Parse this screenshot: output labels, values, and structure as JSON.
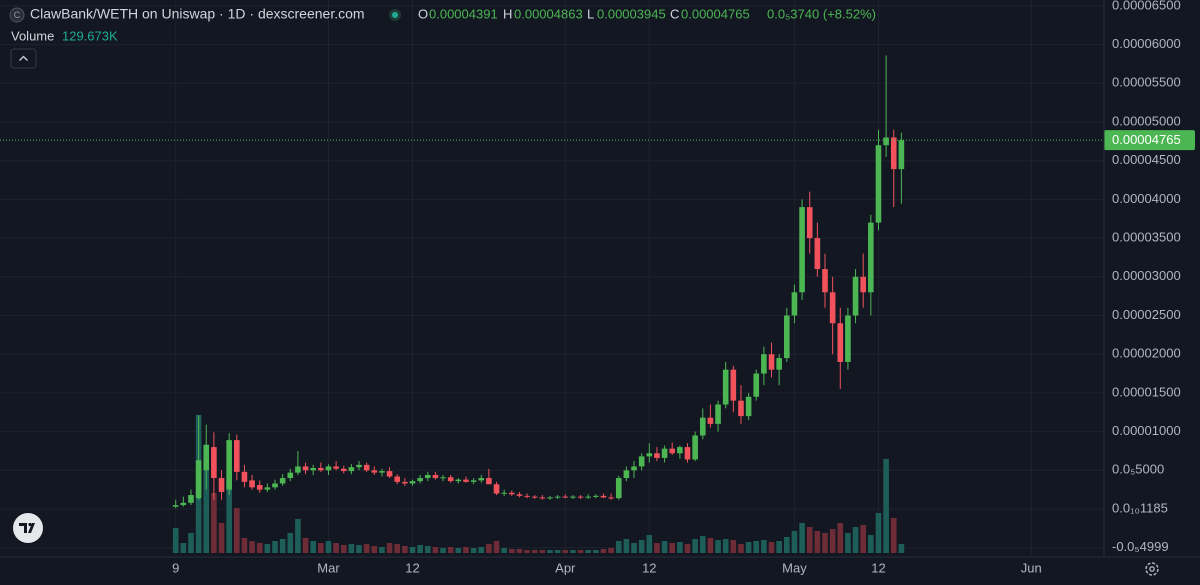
{
  "header": {
    "logo": "C",
    "title": "ClawBank/WETH on Uniswap · 1D · dexscreener.com",
    "o_label": "O",
    "h_label": "H",
    "l_label": "L",
    "c_label": "C",
    "change": "0.0₅3740 (+8.52%)",
    "volume_label": "Volume",
    "volume": "129.673K"
  },
  "chart_data": {
    "type": "candlestick",
    "x": [
      "Feb 9",
      "Feb 10",
      "Feb 11",
      "Feb 12",
      "Feb 13",
      "Feb 14",
      "Feb 15",
      "Feb 16",
      "Feb 17",
      "Feb 18",
      "Feb 19",
      "Feb 20",
      "Feb 21",
      "Feb 22",
      "Feb 23",
      "Feb 24",
      "Feb 25",
      "Feb 26",
      "Feb 27",
      "Feb 28",
      "Mar 1",
      "Mar 2",
      "Mar 3",
      "Mar 4",
      "Mar 5",
      "Mar 6",
      "Mar 7",
      "Mar 8",
      "Mar 9",
      "Mar 10",
      "Mar 11",
      "Mar 12",
      "Mar 13",
      "Mar 14",
      "Mar 15",
      "Mar 16",
      "Mar 17",
      "Mar 18",
      "Mar 19",
      "Mar 20",
      "Mar 21",
      "Mar 22",
      "Mar 23",
      "Mar 24",
      "Mar 25",
      "Mar 26",
      "Mar 27",
      "Mar 28",
      "Mar 29",
      "Mar 30",
      "Mar 31",
      "Apr 1",
      "Apr 2",
      "Apr 3",
      "Apr 4",
      "Apr 5",
      "Apr 6",
      "Apr 7",
      "Apr 8",
      "Apr 9",
      "Apr 10",
      "Apr 11",
      "Apr 12",
      "Apr 13",
      "Apr 14",
      "Apr 15",
      "Apr 16",
      "Apr 17",
      "Apr 18",
      "Apr 19",
      "Apr 20",
      "Apr 21",
      "Apr 22",
      "Apr 23",
      "Apr 24",
      "Apr 25",
      "Apr 26",
      "Apr 27",
      "Apr 28",
      "Apr 29",
      "Apr 30",
      "May 1",
      "May 2",
      "May 3",
      "May 4",
      "May 5",
      "May 6",
      "May 7",
      "May 8",
      "May 9",
      "May 10",
      "May 11",
      "May 12",
      "May 13",
      "May 14",
      "May 15"
    ],
    "open": [
      3e-07,
      5e-07,
      8e-07,
      1.4e-06,
      5e-06,
      8e-06,
      4e-06,
      2.5e-06,
      8.9e-06,
      4.8e-06,
      3.7e-06,
      3.1e-06,
      2.5e-06,
      2.8e-06,
      3.3e-06,
      4e-06,
      4.7e-06,
      5.5e-06,
      5e-06,
      5.3e-06,
      5e-06,
      5.5e-06,
      5.2e-06,
      4.9e-06,
      5.4e-06,
      5.7e-06,
      5e-06,
      4.7e-06,
      4.9e-06,
      4.2e-06,
      3.5e-06,
      3.3e-06,
      3.6e-06,
      4e-06,
      4.4e-06,
      4e-06,
      4.1e-06,
      3.6e-06,
      3.8e-06,
      3.5e-06,
      3.7e-06,
      4e-06,
      3.2e-06,
      2e-06,
      2.1e-06,
      1.9e-06,
      1.7e-06,
      1.6e-06,
      1.5e-06,
      1.4e-06,
      1.5e-06,
      1.6e-06,
      1.5e-06,
      1.6e-06,
      1.5e-06,
      1.6e-06,
      1.7e-06,
      1.5e-06,
      1.4e-06,
      4e-06,
      5e-06,
      5.5e-06,
      6.8e-06,
      7.2e-06,
      6.6e-06,
      7.8e-06,
      7.2e-06,
      8e-06,
      6.4e-06,
      9.5e-06,
      1.18e-05,
      1.1e-05,
      1.35e-05,
      1.8e-05,
      1.4e-05,
      1.2e-05,
      1.45e-05,
      1.75e-05,
      2e-05,
      1.8e-05,
      1.95e-05,
      2.5e-05,
      2.8e-05,
      3.9e-05,
      3.5e-05,
      3.1e-05,
      2.8e-05,
      2.4e-05,
      1.9e-05,
      2.5e-05,
      3e-05,
      2.8e-05,
      3.7e-05,
      4.7e-05,
      4.8e-05,
      4.391e-05
    ],
    "high": [
      1.2e-06,
      1.6e-06,
      2.5e-06,
      1.21e-05,
      1.09e-05,
      9.9e-06,
      5e-06,
      9.8e-06,
      9.6e-06,
      5.7e-06,
      4.4e-06,
      3.7e-06,
      3.3e-06,
      3.8e-06,
      4.5e-06,
      5.2e-06,
      7.5e-06,
      6e-06,
      5.7e-06,
      6e-06,
      5.8e-06,
      6.2e-06,
      5.6e-06,
      5.8e-06,
      6.2e-06,
      6e-06,
      5.5e-06,
      5.2e-06,
      5.4e-06,
      4.5e-06,
      4e-06,
      3.8e-06,
      4.4e-06,
      4.8e-06,
      4.8e-06,
      4.4e-06,
      4.4e-06,
      4e-06,
      4.2e-06,
      4e-06,
      4.4e-06,
      5.2e-06,
      3.5e-06,
      2.5e-06,
      2.4e-06,
      2.2e-06,
      2e-06,
      1.8e-06,
      1.8e-06,
      1.7e-06,
      1.8e-06,
      1.9e-06,
      1.8e-06,
      1.8e-06,
      1.9e-06,
      1.9e-06,
      2e-06,
      2e-06,
      4.3e-06,
      5.5e-06,
      6.2e-06,
      7.2e-06,
      8.5e-06,
      8e-06,
      8.2e-06,
      8.6e-06,
      8.2e-06,
      8.5e-06,
      1e-05,
      1.3e-05,
      1.35e-05,
      1.4e-05,
      1.9e-05,
      1.85e-05,
      1.6e-05,
      1.5e-05,
      1.8e-05,
      2.1e-05,
      2.15e-05,
      2e-05,
      2.6e-05,
      2.9e-05,
      4e-05,
      4.1e-05,
      3.7e-05,
      3.3e-05,
      3e-05,
      2.6e-05,
      2.6e-05,
      3.1e-05,
      3.3e-05,
      3.8e-05,
      4.9e-05,
      5.86e-05,
      4.9e-05,
      4.863e-05
    ],
    "low": [
      1e-07,
      3e-07,
      5e-07,
      1.2e-06,
      2.5e-06,
      1.2e-06,
      1.2e-06,
      1.8e-06,
      3.7e-06,
      2.8e-06,
      2.5e-06,
      2.1e-06,
      2.2e-06,
      2.5e-06,
      3e-06,
      3.6e-06,
      4.4e-06,
      4.5e-06,
      4.4e-06,
      4.8e-06,
      4.4e-06,
      5e-06,
      4.6e-06,
      4.5e-06,
      5e-06,
      4.8e-06,
      4.4e-06,
      4.2e-06,
      4e-06,
      3.2e-06,
      3e-06,
      3e-06,
      3.3e-06,
      3.6e-06,
      3.8e-06,
      3.6e-06,
      3.4e-06,
      3.3e-06,
      3.4e-06,
      3.2e-06,
      3.4e-06,
      3.6e-06,
      1.8e-06,
      1.7e-06,
      1.7e-06,
      1.5e-06,
      1.4e-06,
      1.3e-06,
      1.2e-06,
      1.2e-06,
      1.3e-06,
      1.4e-06,
      1.3e-06,
      1.3e-06,
      1.3e-06,
      1.4e-06,
      1.4e-06,
      1.2e-06,
      1.2e-06,
      3.6e-06,
      4e-06,
      5e-06,
      6e-06,
      6.2e-06,
      6e-06,
      7e-06,
      6.5e-06,
      6e-06,
      6.2e-06,
      9e-06,
      1.05e-05,
      1e-05,
      1.3e-05,
      1.25e-05,
      1.1e-05,
      1.15e-05,
      1.4e-05,
      1.6e-05,
      1.7e-05,
      1.6e-05,
      1.9e-05,
      2.4e-05,
      2.7e-05,
      3.3e-05,
      3e-05,
      2.6e-05,
      2e-05,
      1.55e-05,
      1.8e-05,
      2.4e-05,
      2.6e-05,
      2.5e-05,
      3.6e-05,
      4.55e-05,
      3.9e-05,
      3.945e-05
    ],
    "close": [
      5e-07,
      8e-07,
      1.8e-06,
      6.3e-06,
      8.3e-06,
      4e-06,
      2.2e-06,
      8.9e-06,
      4.8e-06,
      3.5e-06,
      2.8e-06,
      2.5e-06,
      2.8e-06,
      3.3e-06,
      4e-06,
      4.7e-06,
      5.5e-06,
      5e-06,
      5.3e-06,
      5e-06,
      5.5e-06,
      5.2e-06,
      4.9e-06,
      5.4e-06,
      5.7e-06,
      5e-06,
      4.7e-06,
      4.9e-06,
      4.2e-06,
      3.5e-06,
      3.3e-06,
      3.6e-06,
      4e-06,
      4.4e-06,
      4e-06,
      4.1e-06,
      3.6e-06,
      3.8e-06,
      3.5e-06,
      3.7e-06,
      4e-06,
      3.2e-06,
      2e-06,
      2.1e-06,
      1.9e-06,
      1.7e-06,
      1.6e-06,
      1.5e-06,
      1.4e-06,
      1.5e-06,
      1.6e-06,
      1.5e-06,
      1.6e-06,
      1.5e-06,
      1.6e-06,
      1.7e-06,
      1.5e-06,
      1.4e-06,
      4e-06,
      5e-06,
      5.5e-06,
      6.8e-06,
      7.2e-06,
      6.6e-06,
      7.8e-06,
      7.2e-06,
      8e-06,
      6.4e-06,
      9.5e-06,
      1.18e-05,
      1.1e-05,
      1.35e-05,
      1.8e-05,
      1.4e-05,
      1.2e-05,
      1.45e-05,
      1.75e-05,
      2e-05,
      1.8e-05,
      1.95e-05,
      2.5e-05,
      2.8e-05,
      3.9e-05,
      3.5e-05,
      3.1e-05,
      2.8e-05,
      2.4e-05,
      1.9e-05,
      2.5e-05,
      3e-05,
      2.8e-05,
      3.7e-05,
      4.7e-05,
      4.8e-05,
      4.391e-05,
      4.765e-05
    ],
    "volume": [
      360000,
      144000,
      288000,
      1987200,
      1224000,
      864000,
      432000,
      1152000,
      648000,
      216000,
      172800,
      144000,
      129600,
      172800,
      201600,
      288000,
      489600,
      216000,
      172800,
      144000,
      172800,
      144000,
      115200,
      129600,
      115200,
      129600,
      100800,
      86400,
      144000,
      129600,
      100800,
      86400,
      115200,
      100800,
      86400,
      72000,
      86400,
      72000,
      86400,
      72000,
      86400,
      129600,
      172800,
      72000,
      57600,
      57600,
      43200,
      43200,
      43200,
      43200,
      43200,
      43200,
      43200,
      43200,
      43200,
      43200,
      57600,
      72000,
      172800,
      201600,
      144000,
      187200,
      259200,
      144000,
      172800,
      144000,
      158400,
      129600,
      201600,
      244800,
      216000,
      187200,
      201600,
      187200,
      129600,
      158400,
      172800,
      187200,
      158400,
      172800,
      230400,
      316800,
      432000,
      374400,
      316800,
      288000,
      345600,
      432000,
      288000,
      374400,
      403200,
      259200,
      576000,
      1353600,
      504000,
      129673
    ],
    "up_color": "#4cb752",
    "down_color": "#f2525c",
    "up_volume_color": "#1d5e58",
    "down_volume_color": "#6e2c37",
    "xlim": [
      "Jan 17",
      "Jun 10"
    ],
    "xticks": [
      {
        "value": "Feb 9",
        "label": "9"
      },
      {
        "value": "Mar 1",
        "label": "Mar"
      },
      {
        "value": "Mar 12",
        "label": "12"
      },
      {
        "value": "Apr 1",
        "label": "Apr"
      },
      {
        "value": "Apr 12",
        "label": "12"
      },
      {
        "value": "May 1",
        "label": "May"
      },
      {
        "value": "May 12",
        "label": "12"
      },
      {
        "value": "Jun 1",
        "label": "Jun"
      }
    ],
    "ylim": [
      -6.2e-06,
      6.576e-05
    ],
    "yticks": [
      {
        "value": 6.5e-05,
        "label": "0.00006500"
      },
      {
        "value": 6e-05,
        "label": "0.00006000"
      },
      {
        "value": 5.5e-05,
        "label": "0.00005500"
      },
      {
        "value": 5e-05,
        "label": "0.00005000"
      },
      {
        "value": 4.5e-05,
        "label": "0.00004500"
      },
      {
        "value": 4e-05,
        "label": "0.00004000"
      },
      {
        "value": 3.5e-05,
        "label": "0.00003500"
      },
      {
        "value": 3e-05,
        "label": "0.00003000"
      },
      {
        "value": 2.5e-05,
        "label": "0.00002500"
      },
      {
        "value": 2e-05,
        "label": "0.00002000"
      },
      {
        "value": 1.5e-05,
        "label": "0.00001500"
      },
      {
        "value": 1e-05,
        "label": "0.00001000"
      },
      {
        "value": 5e-06,
        "label": "0.0₅5000"
      },
      {
        "value": 1.185e-11,
        "label": "0.0₁₀1185"
      },
      {
        "value": -4.999e-06,
        "label": "-0.0₅4999"
      }
    ],
    "volume_ylim": [
      0,
      2000000
    ],
    "grid": true
  }
}
